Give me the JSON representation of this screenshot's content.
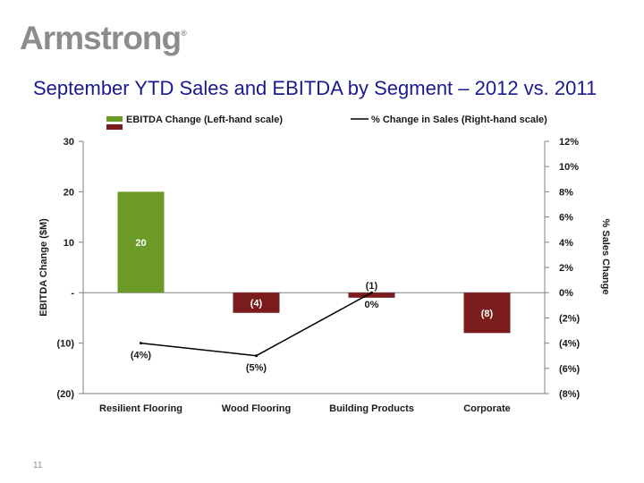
{
  "brand": {
    "logo_text": "Armstrong",
    "registered_mark": "®"
  },
  "slide": {
    "title": "September YTD Sales and EBITDA by Segment – 2012 vs. 2011",
    "page_number": "11"
  },
  "colors": {
    "positive_bar": "#6b9a27",
    "negative_bar": "#7b1c1c",
    "line": "#000000",
    "axis": "#808080",
    "label_dark": "#1a1a1a",
    "title": "#1a1a8c"
  },
  "chart_data": {
    "type": "bar",
    "categories": [
      "Resilient Flooring",
      "Wood Flooring",
      "Building Products",
      "Corporate"
    ],
    "series": [
      {
        "name": "EBITDA Change (Left-hand scale)",
        "chart_type": "bar",
        "axis": "left",
        "values": [
          20,
          -4,
          -1,
          -8
        ],
        "labels": [
          "20",
          "(4)",
          "(1)",
          "(8)"
        ]
      },
      {
        "name": "% Change in Sales (Right-hand scale)",
        "chart_type": "line",
        "axis": "right",
        "values": [
          -4,
          -5,
          0,
          null
        ],
        "labels": [
          "(4%)",
          "(5%)",
          "0%",
          ""
        ]
      }
    ],
    "ylabel": "EBITDA Change ($M)",
    "ylabel_right": "% Sales Change",
    "ylim": [
      -20,
      30
    ],
    "ylim_right": [
      -8,
      12
    ],
    "yticks": [
      30,
      20,
      10,
      0,
      -10,
      -20
    ],
    "ytick_labels": [
      "30",
      "20",
      "10",
      "-",
      "(10)",
      "(20)"
    ],
    "yticks_right": [
      12,
      10,
      8,
      6,
      4,
      2,
      0,
      -2,
      -4,
      -6,
      -8
    ],
    "ytick_labels_right": [
      "12%",
      "10%",
      "8%",
      "6%",
      "4%",
      "2%",
      "0%",
      "(2%)",
      "(4%)",
      "(6%)",
      "(8%)"
    ],
    "grid": false,
    "legend_position": "top"
  }
}
